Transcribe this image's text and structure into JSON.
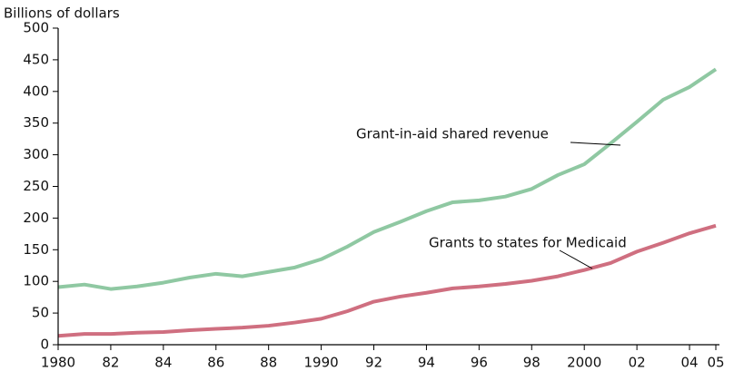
{
  "chart_data": {
    "type": "line",
    "y_label": "Billions of dollars",
    "xlim": [
      1980,
      2005
    ],
    "xticks": [
      1980,
      {
        "value": 1982,
        "label": "82"
      },
      {
        "value": 1984,
        "label": "84"
      },
      {
        "value": 1986,
        "label": "86"
      },
      {
        "value": 1988,
        "label": "88"
      },
      1990,
      {
        "value": 1992,
        "label": "92"
      },
      {
        "value": 1994,
        "label": "94"
      },
      {
        "value": 1996,
        "label": "96"
      },
      {
        "value": 1998,
        "label": "98"
      },
      2000,
      {
        "value": 2002,
        "label": "02"
      },
      {
        "value": 2004,
        "label": "04"
      },
      {
        "value": 2005,
        "label": "05"
      }
    ],
    "ylim": [
      0,
      500
    ],
    "yticks": [
      0,
      50,
      100,
      150,
      200,
      250,
      300,
      350,
      400,
      450,
      500
    ],
    "x": [
      1980,
      1981,
      1982,
      1983,
      1984,
      1985,
      1986,
      1987,
      1988,
      1989,
      1990,
      1991,
      1992,
      1993,
      1994,
      1995,
      1996,
      1997,
      1998,
      1999,
      2000,
      2001,
      2002,
      2003,
      2004,
      2005
    ],
    "series": [
      {
        "name": "Grant-in-aid shared revenue",
        "color": "#8fc8a2",
        "values": [
          91,
          95,
          88,
          92,
          98,
          106,
          112,
          108,
          115,
          122,
          135,
          155,
          178,
          194,
          211,
          225,
          228,
          234,
          246,
          268,
          285,
          318,
          352,
          387,
          407,
          435
        ]
      },
      {
        "name": "Grants to states for Medicaid",
        "color": "#cf6f80",
        "values": [
          14,
          17,
          17,
          19,
          20,
          23,
          25,
          27,
          30,
          35,
          41,
          53,
          68,
          76,
          82,
          89,
          92,
          96,
          101,
          108,
          118,
          129,
          147,
          161,
          176,
          188
        ]
      }
    ]
  }
}
